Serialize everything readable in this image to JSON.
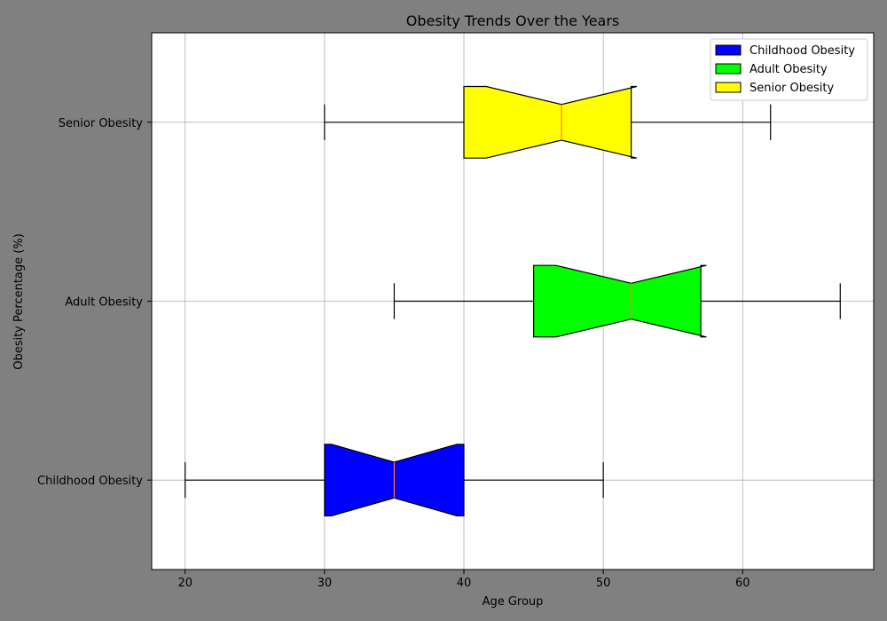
{
  "chart_data": {
    "type": "box",
    "orientation": "horizontal",
    "notched": true,
    "title": "Obesity Trends Over the Years",
    "xlabel": "Age Group",
    "ylabel": "Obesity Percentage (%)",
    "xlim": [
      17.6,
      69.4
    ],
    "xticks": [
      20,
      30,
      40,
      50,
      60
    ],
    "grid": true,
    "legend_position": "top-right",
    "categories": [
      "Childhood Obesity",
      "Adult Obesity",
      "Senior Obesity"
    ],
    "series": [
      {
        "name": "Childhood Obesity",
        "color": "#0000ff",
        "whisker_low": 20,
        "q1": 30,
        "median": 35,
        "q3": 40,
        "whisker_high": 50,
        "notch_low": 30.5,
        "notch_high": 39.5
      },
      {
        "name": "Adult Obesity",
        "color": "#00ff00",
        "whisker_low": 35,
        "q1": 45,
        "median": 52,
        "q3": 57,
        "whisker_high": 67,
        "notch_low": 46.6,
        "notch_high": 57.4
      },
      {
        "name": "Senior Obesity",
        "color": "#ffff00",
        "whisker_low": 30,
        "q1": 40,
        "median": 47,
        "q3": 52,
        "whisker_high": 62,
        "notch_low": 41.6,
        "notch_high": 52.4
      }
    ],
    "colors": {
      "figure_bg": "#808080",
      "plot_bg": "#ffffff",
      "grid": "#b0b0b0",
      "median": "#ff7f0e"
    }
  }
}
